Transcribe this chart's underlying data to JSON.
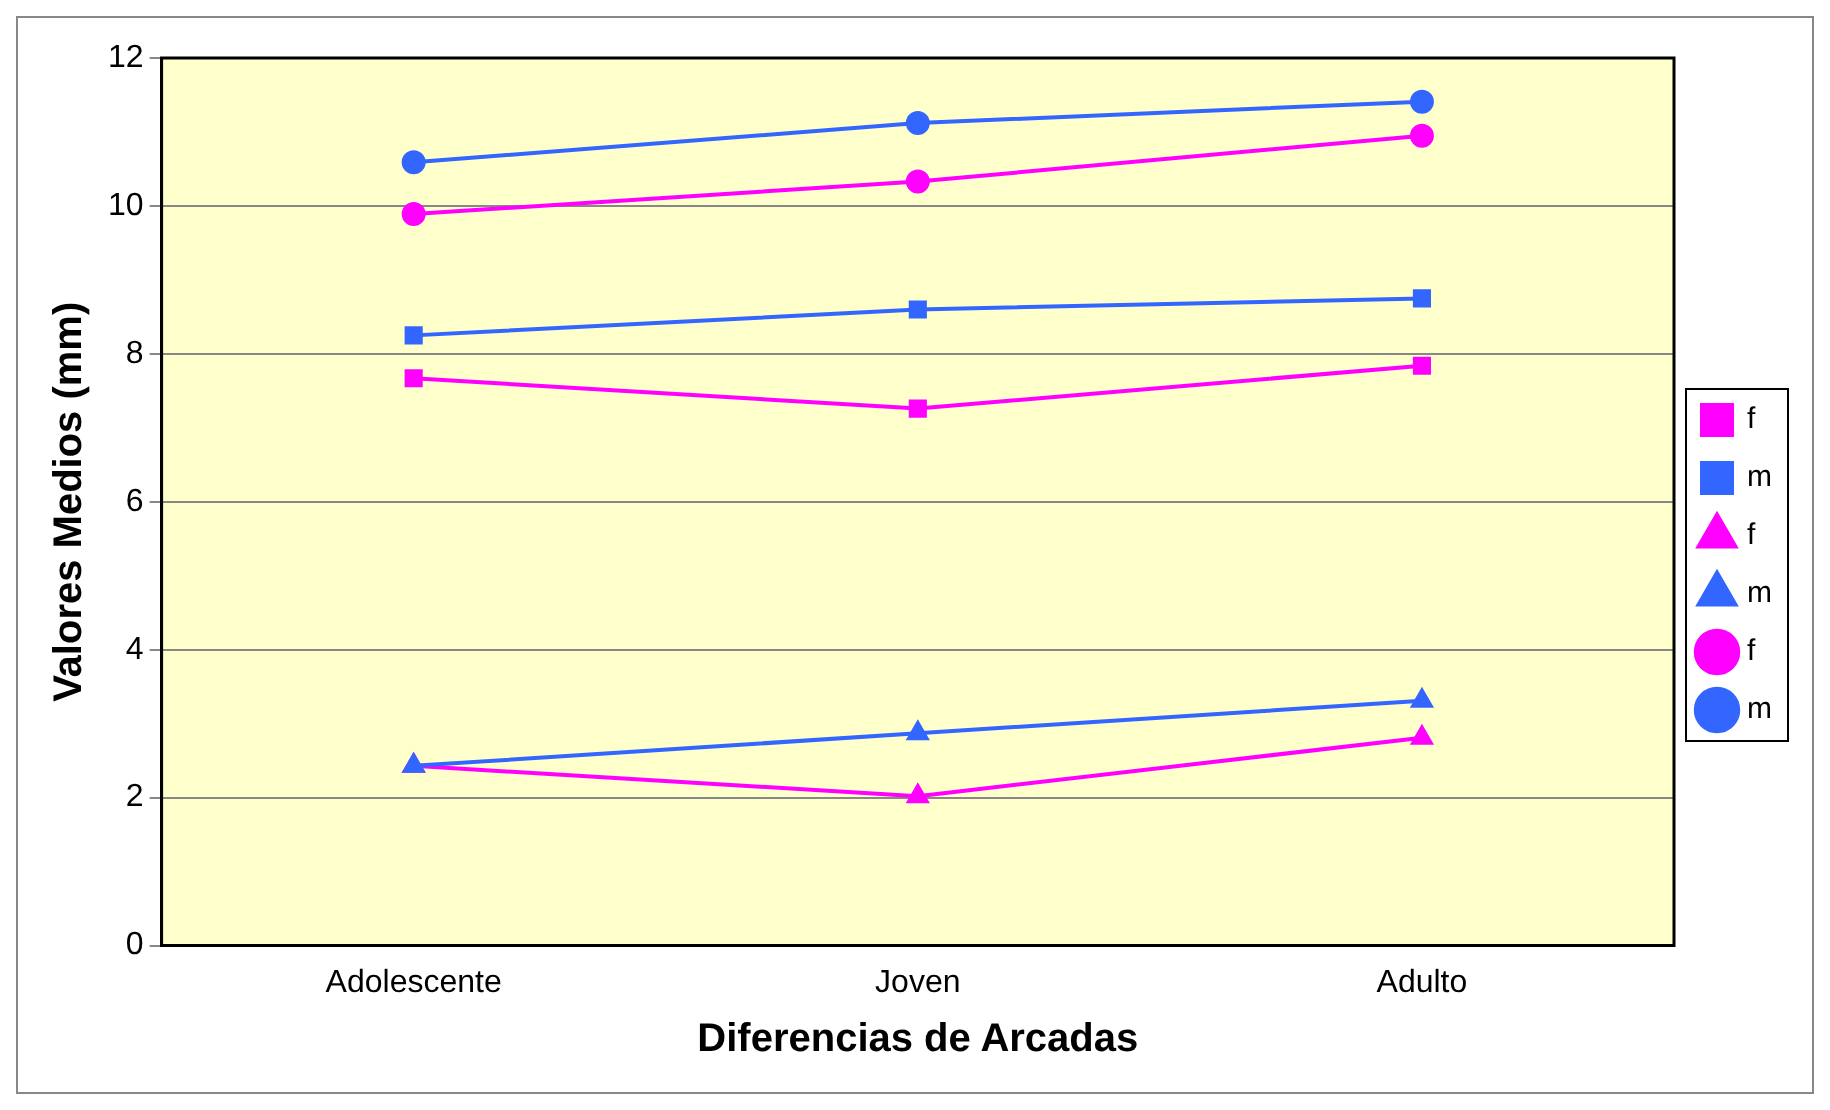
{
  "chart_data": {
    "type": "line",
    "xlabel": "Diferencias de Arcadas",
    "ylabel": "Valores Medios (mm)",
    "categories": [
      "Adolescente",
      "Joven",
      "Adulto"
    ],
    "ylim": [
      0,
      12
    ],
    "yticks": [
      0,
      2,
      4,
      6,
      8,
      10,
      12
    ],
    "grid": "y",
    "legend": "right",
    "series": [
      {
        "name": "f",
        "color": "#ff00ff",
        "marker": "square",
        "values": [
          7.67,
          7.26,
          7.84
        ]
      },
      {
        "name": "m",
        "color": "#3366ff",
        "marker": "square",
        "values": [
          8.25,
          8.6,
          8.75
        ]
      },
      {
        "name": "f",
        "color": "#ff00ff",
        "marker": "triangle",
        "values": [
          2.43,
          2.02,
          2.81
        ]
      },
      {
        "name": "m",
        "color": "#3366ff",
        "marker": "triangle",
        "values": [
          2.43,
          2.87,
          3.31
        ]
      },
      {
        "name": "f",
        "color": "#ff00ff",
        "marker": "circle",
        "values": [
          9.89,
          10.33,
          10.95
        ]
      },
      {
        "name": "m",
        "color": "#3366ff",
        "marker": "circle",
        "values": [
          10.59,
          11.12,
          11.41
        ]
      }
    ]
  }
}
